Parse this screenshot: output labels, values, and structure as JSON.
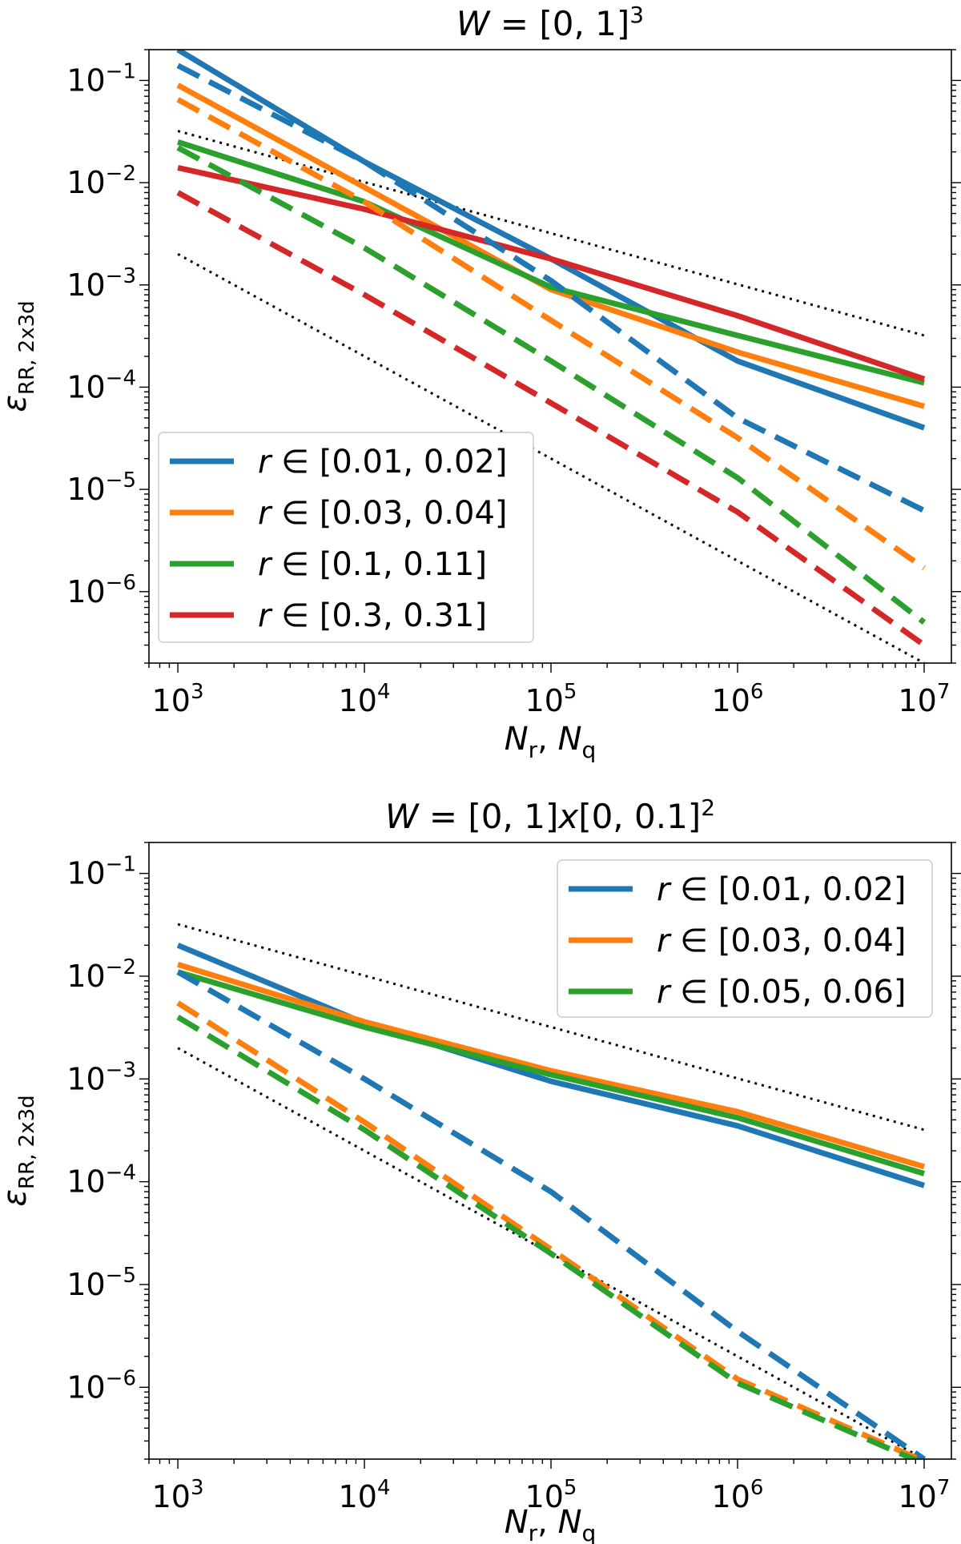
{
  "chart_data": [
    {
      "type": "line",
      "title_prefix": "W",
      "title_body": " = [0, 1]",
      "title_sup": "3",
      "xlabel": "N_r, N_q",
      "ylabel": "ε_RR, 2x3d",
      "xscale": "log",
      "yscale": "log",
      "xlim": [
        700,
        14000000
      ],
      "ylim": [
        2e-07,
        0.2
      ],
      "x_ticks": [
        {
          "base": "10",
          "exp": "3",
          "value": 1000
        },
        {
          "base": "10",
          "exp": "4",
          "value": 10000
        },
        {
          "base": "10",
          "exp": "5",
          "value": 100000
        },
        {
          "base": "10",
          "exp": "6",
          "value": 1000000
        },
        {
          "base": "10",
          "exp": "7",
          "value": 10000000
        }
      ],
      "y_ticks": [
        {
          "base": "10",
          "exp": "−1",
          "value": 0.1
        },
        {
          "base": "10",
          "exp": "−2",
          "value": 0.01
        },
        {
          "base": "10",
          "exp": "−3",
          "value": 0.001
        },
        {
          "base": "10",
          "exp": "−4",
          "value": 0.0001
        },
        {
          "base": "10",
          "exp": "−5",
          "value": 1e-05
        },
        {
          "base": "10",
          "exp": "−6",
          "value": 1e-06
        }
      ],
      "legend_position": "lower-left",
      "x": [
        1000,
        10000,
        100000,
        1000000,
        10000000
      ],
      "series": [
        {
          "name": "r ∈ [0.01, 0.02]",
          "label_prefix": "r",
          "label_interval": " ∈ [0.01, 0.02]",
          "method": "solid",
          "color": "#1f77b4",
          "values": [
            0.2,
            0.016,
            0.0018,
            0.00018,
            4e-05
          ]
        },
        {
          "name": "r ∈ [0.03, 0.04]",
          "label_prefix": "r",
          "label_interval": " ∈ [0.03, 0.04]",
          "method": "solid",
          "color": "#ff7f0e",
          "values": [
            0.09,
            0.009,
            0.0009,
            0.00022,
            6.5e-05
          ]
        },
        {
          "name": "r ∈ [0.1, 0.11]",
          "label_prefix": "r",
          "label_interval": " ∈ [0.1, 0.11]",
          "method": "solid",
          "color": "#2ca02c",
          "values": [
            0.025,
            0.0065,
            0.00095,
            0.00032,
            0.00011
          ]
        },
        {
          "name": "r ∈ [0.3, 0.31]",
          "label_prefix": "r",
          "label_interval": " ∈ [0.3, 0.31]",
          "method": "solid",
          "color": "#d62728",
          "values": [
            0.014,
            0.0055,
            0.0018,
            0.0005,
            0.00012
          ]
        },
        {
          "name": "r ∈ [0.01, 0.02] (dashed)",
          "method": "dashed",
          "color": "#1f77b4",
          "values": [
            0.14,
            0.016,
            0.0011,
            5e-05,
            6.2e-06
          ]
        },
        {
          "name": "r ∈ [0.03, 0.04] (dashed)",
          "method": "dashed",
          "color": "#ff7f0e",
          "values": [
            0.065,
            0.0065,
            0.00045,
            3.2e-05,
            1.7e-06
          ]
        },
        {
          "name": "r ∈ [0.1, 0.11] (dashed)",
          "method": "dashed",
          "color": "#2ca02c",
          "values": [
            0.022,
            0.0023,
            0.00018,
            1.3e-05,
            5e-07
          ]
        },
        {
          "name": "r ∈ [0.3, 0.31] (dashed)",
          "method": "dashed",
          "color": "#d62728",
          "values": [
            0.008,
            0.0008,
            7e-05,
            6e-06,
            3e-07
          ]
        }
      ],
      "reference_lines": [
        {
          "name": "reference slope -1/2",
          "color": "#000000",
          "x": [
            1000,
            10000000
          ],
          "values": [
            0.032,
            0.00032
          ]
        },
        {
          "name": "reference slope -1",
          "color": "#000000",
          "x": [
            1000,
            10000000
          ],
          "values": [
            0.002,
            2e-07
          ]
        }
      ]
    },
    {
      "type": "line",
      "title_prefix": "W",
      "title_body": " = [0, 1]",
      "title_italic": "x",
      "title_body2": "[0, 0.1]",
      "title_sup": "2",
      "xlabel": "N_r, N_q",
      "ylabel": "ε_RR, 2x3d",
      "xscale": "log",
      "yscale": "log",
      "xlim": [
        700,
        14000000
      ],
      "ylim": [
        2e-07,
        0.2
      ],
      "x_ticks": [
        {
          "base": "10",
          "exp": "3",
          "value": 1000
        },
        {
          "base": "10",
          "exp": "4",
          "value": 10000
        },
        {
          "base": "10",
          "exp": "5",
          "value": 100000
        },
        {
          "base": "10",
          "exp": "6",
          "value": 1000000
        },
        {
          "base": "10",
          "exp": "7",
          "value": 10000000
        }
      ],
      "y_ticks": [
        {
          "base": "10",
          "exp": "−1",
          "value": 0.1
        },
        {
          "base": "10",
          "exp": "−2",
          "value": 0.01
        },
        {
          "base": "10",
          "exp": "−3",
          "value": 0.001
        },
        {
          "base": "10",
          "exp": "−4",
          "value": 0.0001
        },
        {
          "base": "10",
          "exp": "−5",
          "value": 1e-05
        },
        {
          "base": "10",
          "exp": "−6",
          "value": 1e-06
        }
      ],
      "legend_position": "upper-right",
      "x": [
        1000,
        10000,
        100000,
        1000000,
        10000000
      ],
      "series": [
        {
          "name": "r ∈ [0.01, 0.02]",
          "label_prefix": "r",
          "label_interval": " ∈ [0.01, 0.02]",
          "method": "solid",
          "color": "#1f77b4",
          "values": [
            0.02,
            0.0035,
            0.00095,
            0.00035,
            9.2e-05
          ]
        },
        {
          "name": "r ∈ [0.03, 0.04]",
          "label_prefix": "r",
          "label_interval": " ∈ [0.03, 0.04]",
          "method": "solid",
          "color": "#ff7f0e",
          "values": [
            0.013,
            0.0036,
            0.0012,
            0.00048,
            0.00014
          ]
        },
        {
          "name": "r ∈ [0.05, 0.06]",
          "label_prefix": "r",
          "label_interval": " ∈ [0.05, 0.06]",
          "method": "solid",
          "color": "#2ca02c",
          "values": [
            0.011,
            0.0032,
            0.0011,
            0.00042,
            0.00012
          ]
        },
        {
          "name": "r ∈ [0.01, 0.02] (dashed)",
          "method": "dashed",
          "color": "#1f77b4",
          "values": [
            0.011,
            0.001,
            8e-05,
            3.5e-06,
            2e-07
          ]
        },
        {
          "name": "r ∈ [0.03, 0.04] (dashed)",
          "method": "dashed",
          "color": "#ff7f0e",
          "values": [
            0.0055,
            0.00038,
            2.2e-05,
            1.2e-06,
            1.9e-07
          ]
        },
        {
          "name": "r ∈ [0.05, 0.06] (dashed)",
          "method": "dashed",
          "color": "#2ca02c",
          "values": [
            0.004,
            0.00032,
            2e-05,
            1.1e-06,
            1.8e-07
          ]
        }
      ],
      "reference_lines": [
        {
          "name": "reference slope -1/2",
          "color": "#000000",
          "x": [
            1000,
            10000000
          ],
          "values": [
            0.032,
            0.00032
          ]
        },
        {
          "name": "reference slope -1",
          "color": "#000000",
          "x": [
            1000,
            10000000
          ],
          "values": [
            0.002,
            2e-07
          ]
        }
      ]
    }
  ]
}
